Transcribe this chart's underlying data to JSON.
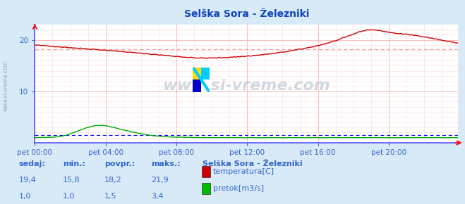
{
  "title": "Selška Sora - Železniki",
  "bg_color": "#d8eaf8",
  "plot_bg_color": "#ffffff",
  "grid_color_major": "#ffbbbb",
  "grid_color_minor": "#ffd8d8",
  "xlabel_ticks": [
    "pet 00:00",
    "pet 04:00",
    "pet 08:00",
    "pet 12:00",
    "pet 16:00",
    "pet 20:00"
  ],
  "yticks": [
    10,
    20
  ],
  "ylim": [
    0,
    23
  ],
  "xlim": [
    0,
    287
  ],
  "avg_temp": 18.2,
  "avg_flow": 1.5,
  "temp_color": "#cc0000",
  "flow_color": "#00aa00",
  "avg_line_color_temp": "#ff9999",
  "avg_line_color_flow": "#0000ff",
  "axis_color": "#5555ff",
  "watermark": "www.si-vreme.com",
  "watermark_color": "#aabbcc",
  "sidebar_text": "www.si-vreme.com",
  "legend_title": "Selška Sora - Železniki",
  "legend_items": [
    {
      "label": "temperatura[C]",
      "color": "#cc0000"
    },
    {
      "label": "pretok[m3/s]",
      "color": "#00bb00"
    }
  ],
  "stats_headers": [
    "sedaj:",
    "min.:",
    "povpr.:",
    "maks.:"
  ],
  "stats_temp": [
    "19,4",
    "15,8",
    "18,2",
    "21,9"
  ],
  "stats_flow": [
    "1,0",
    "1,0",
    "1,5",
    "3,4"
  ],
  "text_color": "#3366cc",
  "n_points": 288
}
